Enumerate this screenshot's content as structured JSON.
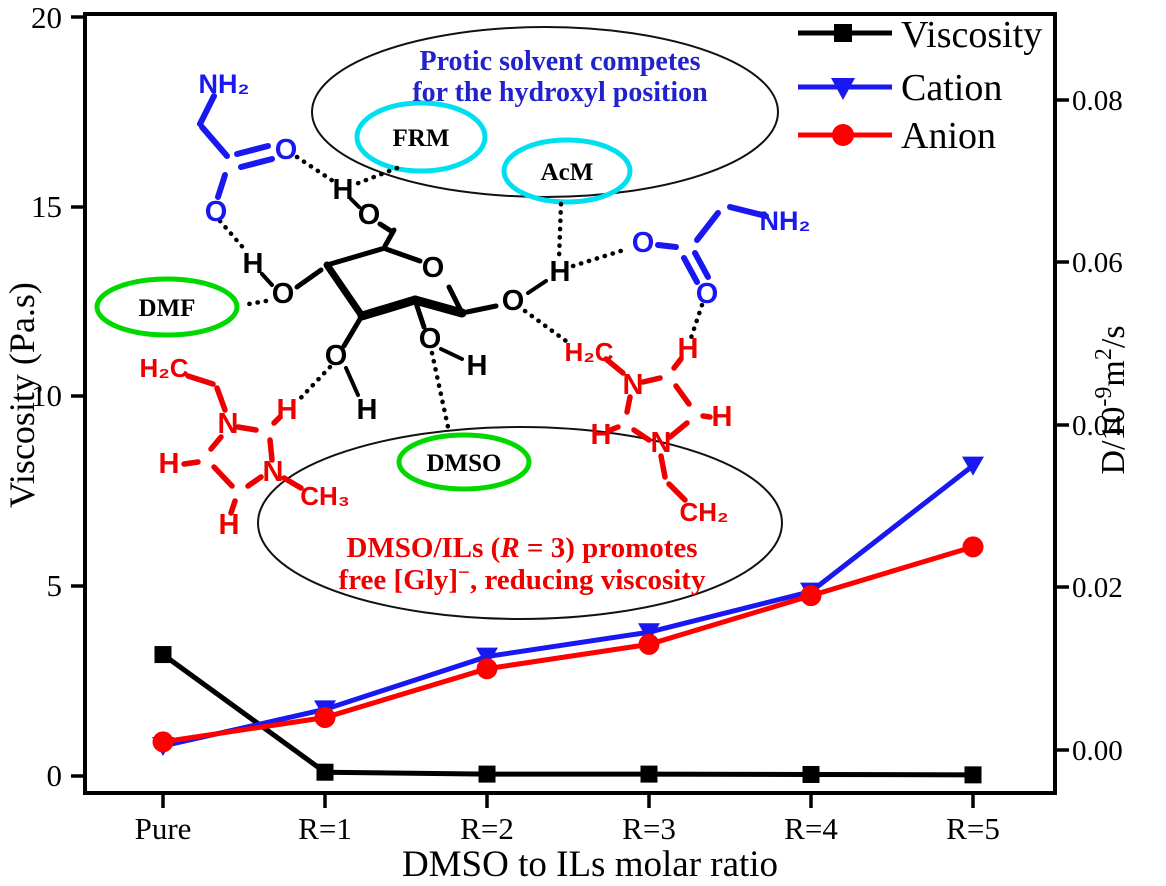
{
  "figure": {
    "background": "#ffffff"
  },
  "colors": {
    "viscosity_series": "#000000",
    "cation_series": "#1a18f0",
    "anion_series": "#ff0000",
    "annotation_blue": "#2222cc",
    "annotation_red": "#ee0000",
    "ellipse_cyan": "#00dff0",
    "ellipse_green": "#00d800"
  },
  "chart_data": {
    "type": "line",
    "categories": [
      "Pure",
      "R=1",
      "R=2",
      "R=3",
      "R=4",
      "R=5"
    ],
    "series": [
      {
        "name": "Viscosity",
        "axis": "left",
        "marker": "square",
        "color": "#000000",
        "values": [
          3.2,
          0.1,
          0.05,
          0.05,
          0.04,
          0.03
        ]
      },
      {
        "name": "Cation",
        "axis": "right",
        "marker": "triangle-down",
        "color": "#1a18f0",
        "values": [
          0.0005,
          0.005,
          0.0115,
          0.0145,
          0.0195,
          0.035
        ]
      },
      {
        "name": "Anion",
        "axis": "right",
        "marker": "circle",
        "color": "#ff0000",
        "values": [
          0.001,
          0.004,
          0.01,
          0.013,
          0.019,
          0.025
        ]
      }
    ],
    "title": "",
    "xlabel": "DMSO to ILs molar ratio",
    "ylabel_left": "Viscosity (Pa.s)",
    "ylabel_right": "D/10-9 m2/s",
    "ylim_left": [
      0,
      20
    ],
    "ylim_right": [
      0,
      0.08
    ],
    "grid": false,
    "legend_position": "top-right"
  },
  "axes": {
    "left": {
      "title": "Viscosity (Pa.s)",
      "ticks": [
        "0",
        "5",
        "10",
        "15",
        "20"
      ]
    },
    "right": {
      "title_parts": [
        "D/10",
        "-9",
        "m",
        "2",
        "/s"
      ],
      "ticks": [
        "0.00",
        "0.02",
        "0.04",
        "0.06",
        "0.08"
      ]
    },
    "bottom": {
      "title": "DMSO to ILs molar ratio",
      "ticks": [
        "Pure",
        "R=1",
        "R=2",
        "R=3",
        "R=4",
        "R=5"
      ]
    }
  },
  "legend": {
    "items": [
      {
        "label": "Viscosity"
      },
      {
        "label": "Cation"
      },
      {
        "label": "Anion"
      }
    ]
  },
  "annotations": {
    "protic": {
      "line1": "Protic solvent  competes",
      "line2": "for the hydroxyl position"
    },
    "dmso": {
      "line1_parts": [
        "DMSO/ILs (",
        "R",
        " = 3) promotes"
      ],
      "line2_parts": [
        "free [Gly]",
        "−",
        ", reducing viscosity"
      ]
    }
  },
  "solvent_labels": {
    "frm": "FRM",
    "acm": "AcM",
    "dmf": "DMF",
    "dmso": "DMSO"
  },
  "molecule": {
    "glycine_left": {
      "nh2": "NH₂",
      "o_carbonyl": "O",
      "o_carboxyl": "O"
    },
    "glycine_right": {
      "nh2": "NH₂",
      "o_carbonyl": "O",
      "o_carboxyl": "O"
    },
    "sugar": {
      "h_c4": "H",
      "o_c4": "O",
      "o_ring": "O",
      "o_c6": "O",
      "h_c6": "H",
      "o_c3": "O",
      "h_c3": "H",
      "o_c2": "O",
      "h_c2": "H",
      "o_c1": "O",
      "h_c1": "H"
    },
    "imidazolium_left": {
      "h2c": "H₂C",
      "n1": "N",
      "h_c2": "H",
      "n3": "N",
      "ch3": "CH₃",
      "h_c5": "H",
      "h_c4": "H"
    },
    "imidazolium_right": {
      "h2c": "H₂C",
      "n1": "N",
      "h_top": "H",
      "n3": "N",
      "ch2": "CH₂",
      "h_right": "H",
      "h_left": "H"
    }
  }
}
